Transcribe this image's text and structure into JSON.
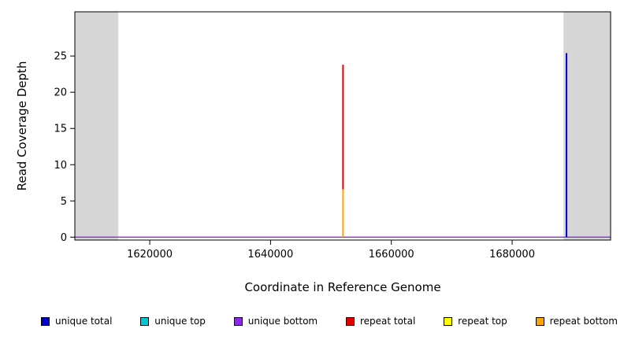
{
  "chart_data": {
    "type": "line",
    "title": "",
    "xlabel": "Coordinate in Reference Genome",
    "ylabel": "Read Coverage Depth",
    "xlim": [
      1607600,
      1696300
    ],
    "ylim": [
      -0.4,
      31.1
    ],
    "xticks": [
      1620000,
      1640000,
      1660000,
      1680000
    ],
    "yticks": [
      0,
      5,
      10,
      15,
      20,
      25
    ],
    "grid": false,
    "plot_bg": "#ffffff",
    "shaded_color": "#d6d6d6",
    "shaded_regions": [
      {
        "from": 1607600,
        "to": 1614800
      },
      {
        "from": 1688500,
        "to": 1696300
      }
    ],
    "baseline": {
      "series": "unique bottom",
      "y": 0,
      "color": "#8a2be2"
    },
    "spikes": [
      {
        "x": 1652000,
        "segments": [
          {
            "series": "repeat total",
            "color": "#e00000",
            "from": 6.6,
            "to": 23.8
          },
          {
            "series": "repeat bottom",
            "color": "#ffa500",
            "from": 0,
            "to": 6.6
          }
        ]
      },
      {
        "x": 1689000,
        "segments": [
          {
            "series": "unique total",
            "color": "#0000cd",
            "from": 0,
            "to": 25.4
          }
        ]
      }
    ],
    "legend": [
      {
        "label": "unique total",
        "color": "#0000cd"
      },
      {
        "label": "unique top",
        "color": "#00c8d2"
      },
      {
        "label": "unique bottom",
        "color": "#8a2be2"
      },
      {
        "label": "repeat total",
        "color": "#e00000"
      },
      {
        "label": "repeat top",
        "color": "#ffff00"
      },
      {
        "label": "repeat bottom",
        "color": "#ffa500"
      }
    ],
    "legend_position": "bottom"
  }
}
